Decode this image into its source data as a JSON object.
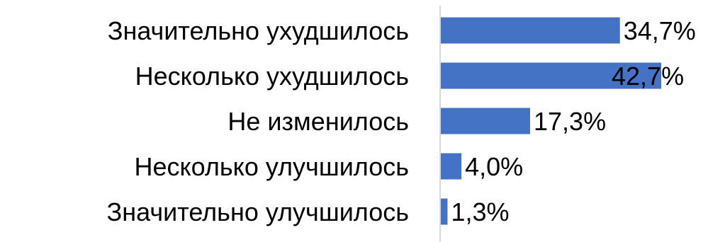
{
  "chart_data": {
    "type": "bar",
    "orientation": "horizontal",
    "categories": [
      "Значительно ухудшилось",
      "Несколько ухудшилось",
      "Не изменилось",
      "Несколько улучшилось",
      "Значительно улучшилось"
    ],
    "values": [
      34.7,
      42.7,
      17.3,
      4.0,
      1.3
    ],
    "value_labels": [
      "34,7%",
      "42,7%",
      "17,3%",
      "4,0%",
      "1,3%"
    ],
    "title": "",
    "xlabel": "",
    "ylabel": "",
    "xlim": [
      0,
      42.7
    ],
    "grid": false,
    "legend": "none",
    "bar_color": "#4472C4",
    "axis_color": "#D9D9D9"
  }
}
